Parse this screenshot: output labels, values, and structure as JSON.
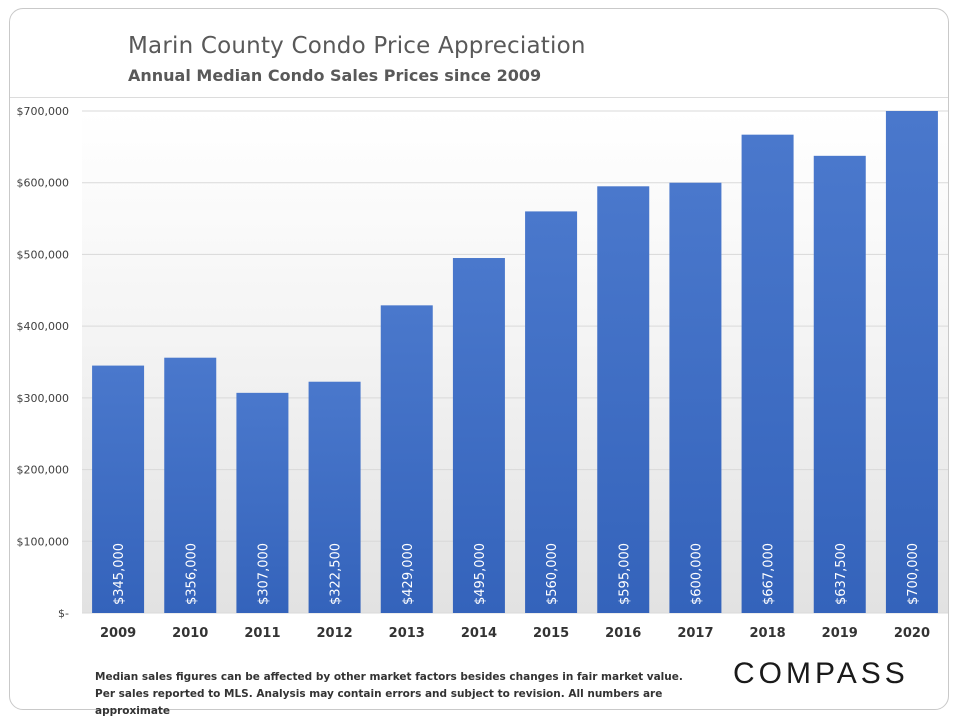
{
  "header": {
    "title": "Marin County Condo Price Appreciation",
    "subtitle": "Annual Median Condo Sales Prices since 2009"
  },
  "footer": {
    "note": "Median sales figures can be affected by other market factors besides changes in fair market value. Per sales reported to MLS. Analysis may contain errors and subject to revision. All numbers are approximate",
    "logo": "COMPASS"
  },
  "chart_data": {
    "type": "bar",
    "categories": [
      "2009",
      "2010",
      "2011",
      "2012",
      "2013",
      "2014",
      "2015",
      "2016",
      "2017",
      "2018",
      "2019",
      "2020"
    ],
    "values": [
      345000,
      356000,
      307000,
      322500,
      429000,
      495000,
      560000,
      595000,
      600000,
      667000,
      637500,
      700000
    ],
    "data_labels": [
      "$345,000",
      "$356,000",
      "$307,000",
      "$322,500",
      "$429,000",
      "$495,000",
      "$560,000",
      "$595,000",
      "$600,000",
      "$667,000",
      "$637,500",
      "$700,000"
    ],
    "ylim": [
      0,
      700000
    ],
    "yticks": [
      0,
      100000,
      200000,
      300000,
      400000,
      500000,
      600000,
      700000
    ],
    "ytick_labels": [
      "$-",
      "$100,000",
      "$200,000",
      "$300,000",
      "$400,000",
      "$500,000",
      "$600,000",
      "$700,000"
    ],
    "title": "Marin County Condo Price Appreciation",
    "xlabel": "",
    "ylabel": "",
    "grid": true,
    "legend": "none",
    "bar_color": "#3e6fc4"
  }
}
